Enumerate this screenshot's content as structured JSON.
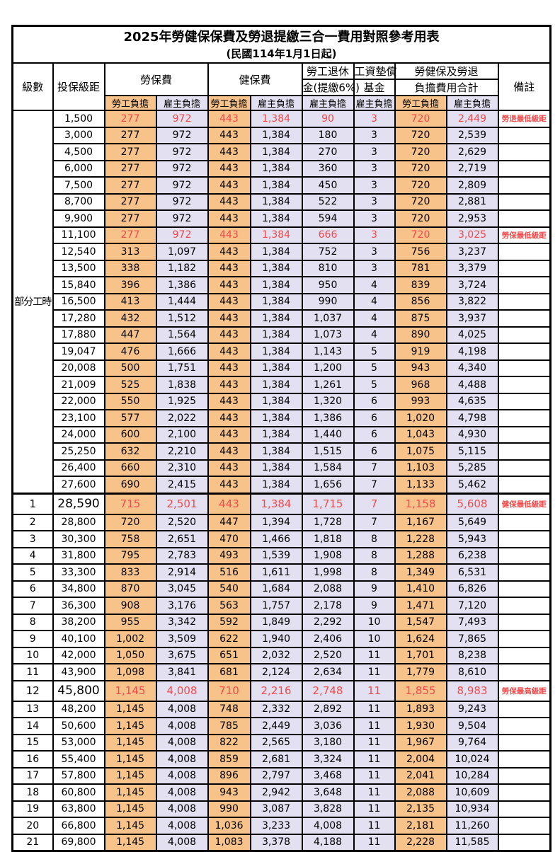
{
  "title": "2025年勞健保保費及勞退提繳三合一費用對照參考用表",
  "subtitle": "(民國114年1月1日起)",
  "header": {
    "level": "級數",
    "bracket": "投保級距",
    "labor_insurance": "勞保費",
    "health_insurance": "健保費",
    "pension_line1": "勞工退休",
    "pension_line2": "金(提繳6%)",
    "fund_line1": "工資墊償",
    "fund_line2": "基金",
    "total_line1": "勞健保及勞退",
    "total_line2": "負擔費用合計",
    "remark": "備註",
    "employee_label": "勞工負擔",
    "employer_label": "雇主負擔"
  },
  "colors": {
    "employee_bg": "#F8C38A",
    "employer_bg": "#E2E0F1",
    "highlight_red": "#F24A4A",
    "border_black": "#000000"
  },
  "part_time_label": "部分工時",
  "part_time_rowspan": 23,
  "column_keys": [
    "li_emp",
    "li_er",
    "hi_emp",
    "hi_er",
    "pension",
    "fund",
    "tot_emp",
    "tot_er"
  ],
  "rows": [
    {
      "group_start": true,
      "level": null,
      "bracket": "1,500",
      "v": [
        "277",
        "972",
        "443",
        "1,384",
        "90",
        "3",
        "720",
        "2,449"
      ],
      "remark": "勞退最低級距",
      "hl": true,
      "big": false,
      "thick": false
    },
    {
      "level": null,
      "bracket": "3,000",
      "v": [
        "277",
        "972",
        "443",
        "1,384",
        "180",
        "3",
        "720",
        "2,539"
      ],
      "remark": "",
      "hl": false,
      "big": false,
      "thick": false
    },
    {
      "level": null,
      "bracket": "4,500",
      "v": [
        "277",
        "972",
        "443",
        "1,384",
        "270",
        "3",
        "720",
        "2,629"
      ],
      "remark": "",
      "hl": false,
      "big": false,
      "thick": false
    },
    {
      "level": null,
      "bracket": "6,000",
      "v": [
        "277",
        "972",
        "443",
        "1,384",
        "360",
        "3",
        "720",
        "2,719"
      ],
      "remark": "",
      "hl": false,
      "big": false,
      "thick": false
    },
    {
      "level": null,
      "bracket": "7,500",
      "v": [
        "277",
        "972",
        "443",
        "1,384",
        "450",
        "3",
        "720",
        "2,809"
      ],
      "remark": "",
      "hl": false,
      "big": false,
      "thick": false
    },
    {
      "level": null,
      "bracket": "8,700",
      "v": [
        "277",
        "972",
        "443",
        "1,384",
        "522",
        "3",
        "720",
        "2,881"
      ],
      "remark": "",
      "hl": false,
      "big": false,
      "thick": false
    },
    {
      "level": null,
      "bracket": "9,900",
      "v": [
        "277",
        "972",
        "443",
        "1,384",
        "594",
        "3",
        "720",
        "2,953"
      ],
      "remark": "",
      "hl": false,
      "big": false,
      "thick": false
    },
    {
      "level": null,
      "bracket": "11,100",
      "v": [
        "277",
        "972",
        "443",
        "1,384",
        "666",
        "3",
        "720",
        "3,025"
      ],
      "remark": "勞保最低級距",
      "hl": true,
      "big": false,
      "thick": false
    },
    {
      "level": null,
      "bracket": "12,540",
      "v": [
        "313",
        "1,097",
        "443",
        "1,384",
        "752",
        "3",
        "756",
        "3,237"
      ],
      "remark": "",
      "hl": false,
      "big": false,
      "thick": false
    },
    {
      "level": null,
      "bracket": "13,500",
      "v": [
        "338",
        "1,182",
        "443",
        "1,384",
        "810",
        "3",
        "781",
        "3,379"
      ],
      "remark": "",
      "hl": false,
      "big": false,
      "thick": false
    },
    {
      "level": null,
      "bracket": "15,840",
      "v": [
        "396",
        "1,386",
        "443",
        "1,384",
        "950",
        "4",
        "839",
        "3,724"
      ],
      "remark": "",
      "hl": false,
      "big": false,
      "thick": false
    },
    {
      "level": null,
      "bracket": "16,500",
      "v": [
        "413",
        "1,444",
        "443",
        "1,384",
        "990",
        "4",
        "856",
        "3,822"
      ],
      "remark": "",
      "hl": false,
      "big": false,
      "thick": false
    },
    {
      "level": null,
      "bracket": "17,280",
      "v": [
        "432",
        "1,512",
        "443",
        "1,384",
        "1,037",
        "4",
        "875",
        "3,937"
      ],
      "remark": "",
      "hl": false,
      "big": false,
      "thick": false
    },
    {
      "level": null,
      "bracket": "17,880",
      "v": [
        "447",
        "1,564",
        "443",
        "1,384",
        "1,073",
        "4",
        "890",
        "4,025"
      ],
      "remark": "",
      "hl": false,
      "big": false,
      "thick": false
    },
    {
      "level": null,
      "bracket": "19,047",
      "v": [
        "476",
        "1,666",
        "443",
        "1,384",
        "1,143",
        "5",
        "919",
        "4,198"
      ],
      "remark": "",
      "hl": false,
      "big": false,
      "thick": false
    },
    {
      "level": null,
      "bracket": "20,008",
      "v": [
        "500",
        "1,751",
        "443",
        "1,384",
        "1,200",
        "5",
        "943",
        "4,340"
      ],
      "remark": "",
      "hl": false,
      "big": false,
      "thick": false
    },
    {
      "level": null,
      "bracket": "21,009",
      "v": [
        "525",
        "1,838",
        "443",
        "1,384",
        "1,261",
        "5",
        "968",
        "4,488"
      ],
      "remark": "",
      "hl": false,
      "big": false,
      "thick": false
    },
    {
      "level": null,
      "bracket": "22,000",
      "v": [
        "550",
        "1,925",
        "443",
        "1,384",
        "1,320",
        "6",
        "993",
        "4,635"
      ],
      "remark": "",
      "hl": false,
      "big": false,
      "thick": false
    },
    {
      "level": null,
      "bracket": "23,100",
      "v": [
        "577",
        "2,022",
        "443",
        "1,384",
        "1,386",
        "6",
        "1,020",
        "4,798"
      ],
      "remark": "",
      "hl": false,
      "big": false,
      "thick": false
    },
    {
      "level": null,
      "bracket": "24,000",
      "v": [
        "600",
        "2,100",
        "443",
        "1,384",
        "1,440",
        "6",
        "1,043",
        "4,930"
      ],
      "remark": "",
      "hl": false,
      "big": false,
      "thick": false
    },
    {
      "level": null,
      "bracket": "25,250",
      "v": [
        "632",
        "2,210",
        "443",
        "1,384",
        "1,515",
        "6",
        "1,075",
        "5,115"
      ],
      "remark": "",
      "hl": false,
      "big": false,
      "thick": false
    },
    {
      "level": null,
      "bracket": "26,400",
      "v": [
        "660",
        "2,310",
        "443",
        "1,384",
        "1,584",
        "7",
        "1,103",
        "5,285"
      ],
      "remark": "",
      "hl": false,
      "big": false,
      "thick": false
    },
    {
      "level": null,
      "bracket": "27,600",
      "v": [
        "690",
        "2,415",
        "443",
        "1,384",
        "1,656",
        "7",
        "1,133",
        "5,462"
      ],
      "remark": "",
      "hl": false,
      "big": false,
      "thick": false
    },
    {
      "level": "1",
      "bracket": "28,590",
      "v": [
        "715",
        "2,501",
        "443",
        "1,384",
        "1,715",
        "7",
        "1,158",
        "5,608"
      ],
      "remark": "健保最低級距",
      "hl": true,
      "big": true,
      "thick": true
    },
    {
      "level": "2",
      "bracket": "28,800",
      "v": [
        "720",
        "2,520",
        "447",
        "1,394",
        "1,728",
        "7",
        "1,167",
        "5,649"
      ],
      "remark": "",
      "hl": false,
      "big": false,
      "thick": false
    },
    {
      "level": "3",
      "bracket": "30,300",
      "v": [
        "758",
        "2,651",
        "470",
        "1,466",
        "1,818",
        "8",
        "1,228",
        "5,943"
      ],
      "remark": "",
      "hl": false,
      "big": false,
      "thick": false
    },
    {
      "level": "4",
      "bracket": "31,800",
      "v": [
        "795",
        "2,783",
        "493",
        "1,539",
        "1,908",
        "8",
        "1,288",
        "6,238"
      ],
      "remark": "",
      "hl": false,
      "big": false,
      "thick": false
    },
    {
      "level": "5",
      "bracket": "33,300",
      "v": [
        "833",
        "2,914",
        "516",
        "1,611",
        "1,998",
        "8",
        "1,349",
        "6,531"
      ],
      "remark": "",
      "hl": false,
      "big": false,
      "thick": false
    },
    {
      "level": "6",
      "bracket": "34,800",
      "v": [
        "870",
        "3,045",
        "540",
        "1,684",
        "2,088",
        "9",
        "1,410",
        "6,826"
      ],
      "remark": "",
      "hl": false,
      "big": false,
      "thick": false
    },
    {
      "level": "7",
      "bracket": "36,300",
      "v": [
        "908",
        "3,176",
        "563",
        "1,757",
        "2,178",
        "9",
        "1,471",
        "7,120"
      ],
      "remark": "",
      "hl": false,
      "big": false,
      "thick": false
    },
    {
      "level": "8",
      "bracket": "38,200",
      "v": [
        "955",
        "3,342",
        "592",
        "1,849",
        "2,292",
        "10",
        "1,547",
        "7,493"
      ],
      "remark": "",
      "hl": false,
      "big": false,
      "thick": false
    },
    {
      "level": "9",
      "bracket": "40,100",
      "v": [
        "1,002",
        "3,509",
        "622",
        "1,940",
        "2,406",
        "10",
        "1,624",
        "7,865"
      ],
      "remark": "",
      "hl": false,
      "big": false,
      "thick": false
    },
    {
      "level": "10",
      "bracket": "42,000",
      "v": [
        "1,050",
        "3,675",
        "651",
        "2,032",
        "2,520",
        "11",
        "1,701",
        "8,238"
      ],
      "remark": "",
      "hl": false,
      "big": false,
      "thick": false
    },
    {
      "level": "11",
      "bracket": "43,900",
      "v": [
        "1,098",
        "3,841",
        "681",
        "2,124",
        "2,634",
        "11",
        "1,779",
        "8,610"
      ],
      "remark": "",
      "hl": false,
      "big": false,
      "thick": false
    },
    {
      "level": "12",
      "bracket": "45,800",
      "v": [
        "1,145",
        "4,008",
        "710",
        "2,216",
        "2,748",
        "11",
        "1,855",
        "8,983"
      ],
      "remark": "勞保最高級距",
      "hl": true,
      "big": true,
      "thick": false
    },
    {
      "level": "13",
      "bracket": "48,200",
      "v": [
        "1,145",
        "4,008",
        "748",
        "2,332",
        "2,892",
        "11",
        "1,893",
        "9,243"
      ],
      "remark": "",
      "hl": false,
      "big": false,
      "thick": false
    },
    {
      "level": "14",
      "bracket": "50,600",
      "v": [
        "1,145",
        "4,008",
        "785",
        "2,449",
        "3,036",
        "11",
        "1,930",
        "9,504"
      ],
      "remark": "",
      "hl": false,
      "big": false,
      "thick": false
    },
    {
      "level": "15",
      "bracket": "53,000",
      "v": [
        "1,145",
        "4,008",
        "822",
        "2,565",
        "3,180",
        "11",
        "1,967",
        "9,764"
      ],
      "remark": "",
      "hl": false,
      "big": false,
      "thick": false
    },
    {
      "level": "16",
      "bracket": "55,400",
      "v": [
        "1,145",
        "4,008",
        "859",
        "2,681",
        "3,324",
        "11",
        "2,004",
        "10,024"
      ],
      "remark": "",
      "hl": false,
      "big": false,
      "thick": false
    },
    {
      "level": "17",
      "bracket": "57,800",
      "v": [
        "1,145",
        "4,008",
        "896",
        "2,797",
        "3,468",
        "11",
        "2,041",
        "10,284"
      ],
      "remark": "",
      "hl": false,
      "big": false,
      "thick": false
    },
    {
      "level": "18",
      "bracket": "60,800",
      "v": [
        "1,145",
        "4,008",
        "943",
        "2,942",
        "3,648",
        "11",
        "2,088",
        "10,609"
      ],
      "remark": "",
      "hl": false,
      "big": false,
      "thick": false
    },
    {
      "level": "19",
      "bracket": "63,800",
      "v": [
        "1,145",
        "4,008",
        "990",
        "3,087",
        "3,828",
        "11",
        "2,135",
        "10,934"
      ],
      "remark": "",
      "hl": false,
      "big": false,
      "thick": false
    },
    {
      "level": "20",
      "bracket": "66,800",
      "v": [
        "1,145",
        "4,008",
        "1,036",
        "3,233",
        "4,008",
        "11",
        "2,181",
        "11,260"
      ],
      "remark": "",
      "hl": false,
      "big": false,
      "thick": false
    },
    {
      "level": "21",
      "bracket": "69,800",
      "v": [
        "1,145",
        "4,008",
        "1,083",
        "3,378",
        "4,188",
        "11",
        "2,228",
        "11,585"
      ],
      "remark": "",
      "hl": false,
      "big": false,
      "thick": false
    }
  ]
}
